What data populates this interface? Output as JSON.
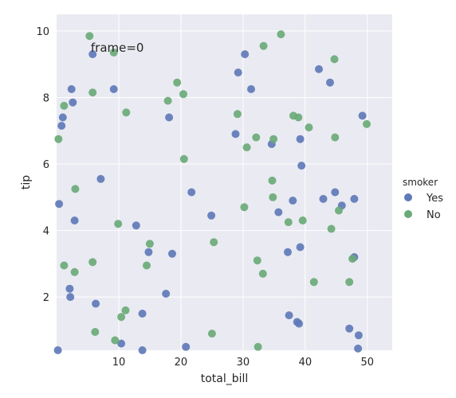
{
  "chart_data": {
    "type": "scatter",
    "xlabel": "total_bill",
    "ylabel": "tip",
    "xlim": [
      0,
      54
    ],
    "ylim": [
      0.4,
      10.5
    ],
    "xticks": [
      10,
      20,
      30,
      40,
      50
    ],
    "yticks": [
      2,
      4,
      6,
      8,
      10
    ],
    "grid": true,
    "annotation": "frame=0",
    "annotation_pos": [
      5.5,
      9.5
    ],
    "legend": {
      "title": "smoker",
      "placement": "right"
    },
    "series": [
      {
        "name": "Yes",
        "color": "#6079b8",
        "points": [
          [
            0.2,
            0.4
          ],
          [
            0.4,
            4.8
          ],
          [
            0.8,
            7.15
          ],
          [
            1.0,
            7.4
          ],
          [
            2.1,
            2.25
          ],
          [
            2.2,
            2.0
          ],
          [
            2.4,
            8.25
          ],
          [
            2.6,
            7.85
          ],
          [
            2.9,
            4.3
          ],
          [
            5.8,
            9.3
          ],
          [
            6.3,
            1.8
          ],
          [
            7.1,
            5.55
          ],
          [
            9.2,
            8.25
          ],
          [
            10.4,
            0.6
          ],
          [
            12.8,
            4.15
          ],
          [
            13.8,
            1.5
          ],
          [
            13.8,
            0.4
          ],
          [
            14.8,
            3.35
          ],
          [
            17.6,
            2.1
          ],
          [
            18.1,
            7.4
          ],
          [
            18.6,
            3.3
          ],
          [
            20.8,
            0.5
          ],
          [
            21.7,
            5.15
          ],
          [
            24.9,
            4.45
          ],
          [
            28.8,
            6.9
          ],
          [
            29.2,
            8.75
          ],
          [
            30.3,
            9.3
          ],
          [
            31.3,
            8.25
          ],
          [
            34.6,
            6.6
          ],
          [
            35.7,
            4.55
          ],
          [
            37.2,
            3.35
          ],
          [
            37.4,
            1.45
          ],
          [
            38.0,
            4.9
          ],
          [
            38.7,
            1.25
          ],
          [
            39.0,
            1.2
          ],
          [
            39.2,
            3.5
          ],
          [
            39.2,
            6.75
          ],
          [
            39.4,
            5.95
          ],
          [
            42.2,
            8.85
          ],
          [
            42.9,
            4.95
          ],
          [
            44.0,
            8.45
          ],
          [
            44.8,
            5.15
          ],
          [
            45.9,
            4.75
          ],
          [
            47.1,
            1.05
          ],
          [
            47.9,
            3.2
          ],
          [
            47.9,
            4.95
          ],
          [
            48.5,
            0.45
          ],
          [
            48.6,
            0.85
          ],
          [
            49.2,
            7.45
          ]
        ]
      },
      {
        "name": "No",
        "color": "#6aaa78",
        "points": [
          [
            0.3,
            6.75
          ],
          [
            1.2,
            7.75
          ],
          [
            1.2,
            2.95
          ],
          [
            2.9,
            2.75
          ],
          [
            3.0,
            5.25
          ],
          [
            5.3,
            9.85
          ],
          [
            5.8,
            8.15
          ],
          [
            5.8,
            3.05
          ],
          [
            6.2,
            0.95
          ],
          [
            9.2,
            9.35
          ],
          [
            9.4,
            0.7
          ],
          [
            9.9,
            4.2
          ],
          [
            10.4,
            1.4
          ],
          [
            11.1,
            1.6
          ],
          [
            11.2,
            7.55
          ],
          [
            14.5,
            2.95
          ],
          [
            15.0,
            3.6
          ],
          [
            17.9,
            7.9
          ],
          [
            19.4,
            8.45
          ],
          [
            20.4,
            8.1
          ],
          [
            20.5,
            6.15
          ],
          [
            25.0,
            0.9
          ],
          [
            25.3,
            3.65
          ],
          [
            29.1,
            7.5
          ],
          [
            30.2,
            4.7
          ],
          [
            30.6,
            6.5
          ],
          [
            32.1,
            6.8
          ],
          [
            32.3,
            3.1
          ],
          [
            32.4,
            0.5
          ],
          [
            33.2,
            2.7
          ],
          [
            33.3,
            9.55
          ],
          [
            34.7,
            5.5
          ],
          [
            34.8,
            5.0
          ],
          [
            34.9,
            6.75
          ],
          [
            36.1,
            9.9
          ],
          [
            37.3,
            4.25
          ],
          [
            38.1,
            7.45
          ],
          [
            38.9,
            7.4
          ],
          [
            39.6,
            4.3
          ],
          [
            40.6,
            7.1
          ],
          [
            41.4,
            2.45
          ],
          [
            44.2,
            4.05
          ],
          [
            44.7,
            9.15
          ],
          [
            44.8,
            6.8
          ],
          [
            45.4,
            4.6
          ],
          [
            47.1,
            2.45
          ],
          [
            47.6,
            3.15
          ],
          [
            49.9,
            7.2
          ]
        ]
      }
    ]
  }
}
